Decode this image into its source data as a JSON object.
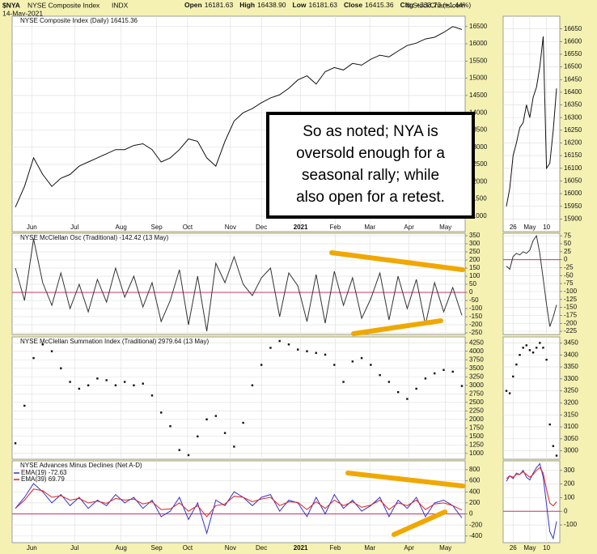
{
  "header": {
    "symbol": "$NYA",
    "name": "NYSE Composite Index",
    "exchange": "INDX",
    "date": "14-May-2021",
    "quote": [
      {
        "label": "Open",
        "value": "16181.63"
      },
      {
        "label": "High",
        "value": "16438.90"
      },
      {
        "label": "Low",
        "value": "16181.63"
      },
      {
        "label": "Close",
        "value": "16415.36"
      },
      {
        "label": "Chg",
        "value": "+233.73 (+1.44%)"
      }
    ],
    "credit": "© StockCharts.com"
  },
  "annotation": [
    "So as noted; NYA is",
    "oversold enough for a",
    "seasonal rally; while",
    "also open for a retest."
  ],
  "chart_data": [
    {
      "type": "line",
      "title": "NYSE Composite Index (Daily) 16415.36",
      "xlim": [
        0,
        49
      ],
      "ylim": [
        10550,
        16800
      ],
      "yticks": [
        11000,
        11500,
        12000,
        12500,
        13000,
        13500,
        14000,
        14500,
        15000,
        15500,
        16000,
        16500
      ],
      "xticks": [
        {
          "value": 1.8,
          "label": "Jun"
        },
        {
          "value": 6.5,
          "label": "Jul"
        },
        {
          "value": 11.6,
          "label": "Aug"
        },
        {
          "value": 15.5,
          "label": "Sep"
        },
        {
          "value": 18.9,
          "label": "Oct"
        },
        {
          "value": 23.6,
          "label": "Nov"
        },
        {
          "value": 27,
          "label": "Dec"
        },
        {
          "value": 31.3,
          "label": "2021"
        },
        {
          "value": 35.1,
          "label": "Feb"
        },
        {
          "value": 38.9,
          "label": "Mar"
        },
        {
          "value": 43.2,
          "label": "Apr"
        },
        {
          "value": 47.2,
          "label": "May"
        }
      ],
      "grid": true,
      "series": [
        {
          "color": "#111111",
          "values": [
            11260,
            11860,
            12690,
            12210,
            11860,
            12100,
            12210,
            12450,
            12570,
            12690,
            12810,
            12930,
            12930,
            13050,
            13100,
            12930,
            12570,
            12690,
            12930,
            13240,
            13170,
            12690,
            12450,
            13170,
            13760,
            14000,
            14120,
            14290,
            14430,
            14520,
            14710,
            14950,
            15070,
            14830,
            15190,
            15310,
            15240,
            15430,
            15380,
            15550,
            15670,
            15620,
            15790,
            15950,
            16020,
            16140,
            16190,
            16330,
            16500,
            16415
          ]
        }
      ]
    },
    {
      "type": "line",
      "xlim": [
        0,
        15
      ],
      "ylim": [
        15850,
        16700
      ],
      "yticks": [
        15900,
        15950,
        16000,
        16050,
        16100,
        16150,
        16200,
        16250,
        16300,
        16350,
        16400,
        16450,
        16500,
        16550,
        16600,
        16650
      ],
      "xticks": [
        {
          "value": 2,
          "label": "26"
        },
        {
          "value": 7,
          "label": "May"
        },
        {
          "value": 12,
          "label": "10"
        }
      ],
      "grid": true,
      "series": [
        {
          "color": "#111111",
          "values": [
            15950,
            16020,
            16150,
            16200,
            16260,
            16280,
            16350,
            16300,
            16380,
            16420,
            16500,
            16620,
            16100,
            16120,
            16250,
            16415
          ]
        }
      ]
    },
    {
      "type": "line",
      "title": "NYSE McClellan Osc (Traditional) -142.42 (13 May)",
      "xlim": [
        0,
        49
      ],
      "ylim": [
        -260,
        365
      ],
      "yticks": [
        -250,
        -200,
        -150,
        -100,
        -50,
        0,
        50,
        100,
        150,
        200,
        250,
        300,
        350
      ],
      "grid": true,
      "refline_color": "#cc3366",
      "series": [
        {
          "color": "#333333",
          "values": [
            150,
            -50,
            330,
            60,
            -80,
            120,
            -100,
            50,
            -120,
            80,
            -60,
            150,
            -30,
            100,
            -90,
            60,
            -180,
            -50,
            140,
            -200,
            100,
            -240,
            180,
            60,
            220,
            50,
            -20,
            90,
            150,
            -150,
            120,
            40,
            -180,
            110,
            -190,
            130,
            -80,
            90,
            -160,
            -40,
            120,
            -170,
            100,
            -100,
            80,
            -200,
            60,
            -120,
            30,
            -142
          ]
        }
      ]
    },
    {
      "type": "line",
      "xlim": [
        0,
        15
      ],
      "ylim": [
        -235,
        83
      ],
      "yticks": [
        -225,
        -200,
        -175,
        -150,
        -125,
        -100,
        -75,
        -50,
        -25,
        0,
        25,
        50,
        75
      ],
      "grid": true,
      "refline_color": "#cc3366",
      "series": [
        {
          "color": "#333333",
          "values": [
            -20,
            -30,
            10,
            20,
            15,
            25,
            20,
            30,
            60,
            75,
            20,
            -60,
            -140,
            -210,
            -180,
            -142
          ]
        }
      ]
    },
    {
      "type": "dot",
      "title": "NYSE McClellan Summation Index (Traditional) 2979.64 (13 May)",
      "xlim": [
        0,
        49
      ],
      "ylim": [
        830,
        4420
      ],
      "yticks": [
        1000,
        1250,
        1500,
        1750,
        2000,
        2250,
        2500,
        2750,
        3000,
        3250,
        3500,
        3750,
        4000,
        4250
      ],
      "grid": true,
      "series": [
        {
          "color": "#111111",
          "values": [
            1300,
            2400,
            3800,
            4200,
            4000,
            3500,
            3100,
            2900,
            3000,
            3200,
            3150,
            3000,
            3100,
            3000,
            3050,
            2700,
            2200,
            1800,
            1100,
            950,
            1500,
            2000,
            2100,
            1600,
            1200,
            1900,
            3000,
            3600,
            4100,
            4300,
            4200,
            4050,
            4000,
            3950,
            3900,
            3600,
            3100,
            3700,
            3800,
            3600,
            3300,
            3100,
            2800,
            2600,
            2900,
            3200,
            3350,
            3450,
            3400,
            2980
          ]
        }
      ]
    },
    {
      "type": "dot",
      "xlim": [
        0,
        15
      ],
      "ylim": [
        2965,
        3475
      ],
      "yticks": [
        3000,
        3050,
        3100,
        3150,
        3200,
        3250,
        3300,
        3350,
        3400,
        3450
      ],
      "grid": true,
      "series": [
        {
          "color": "#111111",
          "values": [
            3250,
            3240,
            3310,
            3360,
            3400,
            3430,
            3440,
            3420,
            3410,
            3430,
            3450,
            3430,
            3380,
            3110,
            3020,
            2980
          ]
        }
      ]
    },
    {
      "type": "line",
      "title": "NYSE Advances Minus Declines (Net A-D)",
      "xlim": [
        0,
        49
      ],
      "ylim": [
        -520,
        960
      ],
      "yticks": [
        -400,
        -200,
        0,
        200,
        400,
        600,
        800
      ],
      "xticks": [
        {
          "value": 1.8,
          "label": "Jun"
        },
        {
          "value": 6.5,
          "label": "Jul"
        },
        {
          "value": 11.6,
          "label": "Aug"
        },
        {
          "value": 15.5,
          "label": "Sep"
        },
        {
          "value": 18.9,
          "label": "Oct"
        },
        {
          "value": 23.6,
          "label": "Nov"
        },
        {
          "value": 27,
          "label": "Dec"
        },
        {
          "value": 31.3,
          "label": "2021"
        },
        {
          "value": 35.1,
          "label": "Feb"
        },
        {
          "value": 38.9,
          "label": "Mar"
        },
        {
          "value": 43.2,
          "label": "Apr"
        },
        {
          "value": 47.2,
          "label": "May"
        }
      ],
      "grid": true,
      "refline_color": "#cc3366",
      "series": [
        {
          "name": "EMA(19) -72.63",
          "color": "#3333cc",
          "values": [
            100,
            300,
            550,
            400,
            200,
            350,
            150,
            300,
            100,
            250,
            150,
            350,
            200,
            300,
            100,
            250,
            -50,
            50,
            300,
            -100,
            200,
            -350,
            250,
            150,
            400,
            300,
            150,
            300,
            350,
            50,
            250,
            200,
            -50,
            300,
            0,
            350,
            100,
            250,
            50,
            150,
            300,
            -50,
            250,
            100,
            300,
            -50,
            200,
            250,
            150,
            -73
          ]
        },
        {
          "name": "EMA(39) 69.79",
          "color": "#e02020",
          "values": [
            100,
            250,
            450,
            420,
            300,
            330,
            250,
            280,
            200,
            230,
            190,
            280,
            250,
            270,
            180,
            220,
            80,
            90,
            200,
            50,
            150,
            -50,
            150,
            180,
            320,
            300,
            220,
            270,
            300,
            150,
            220,
            210,
            80,
            220,
            100,
            250,
            150,
            220,
            120,
            160,
            250,
            80,
            200,
            150,
            250,
            80,
            180,
            200,
            150,
            70
          ]
        }
      ]
    },
    {
      "type": "line",
      "xlim": [
        0,
        15
      ],
      "ylim": [
        -230,
        370
      ],
      "yticks": [
        -100,
        0,
        100,
        200,
        300
      ],
      "xticks": [
        {
          "value": 2,
          "label": "26"
        },
        {
          "value": 7,
          "label": "May"
        },
        {
          "value": 12,
          "label": "10"
        }
      ],
      "grid": true,
      "refline_color": "#cc3366",
      "series": [
        {
          "color": "#3333cc",
          "values": [
            220,
            260,
            240,
            280,
            270,
            300,
            250,
            230,
            280,
            320,
            350,
            250,
            50,
            -150,
            -200,
            -73
          ]
        },
        {
          "color": "#e02020",
          "values": [
            240,
            260,
            250,
            270,
            270,
            290,
            270,
            250,
            270,
            300,
            320,
            280,
            160,
            60,
            40,
            70
          ]
        }
      ]
    }
  ]
}
